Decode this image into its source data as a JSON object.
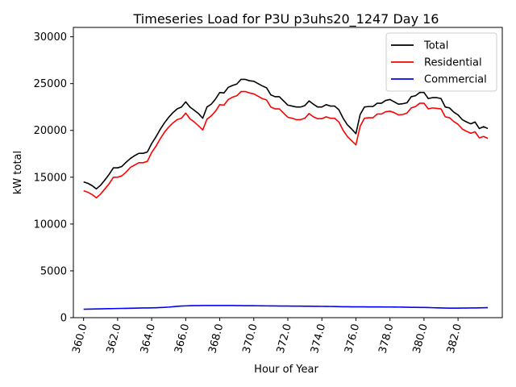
{
  "chart_data": {
    "type": "line",
    "title": "Timeseries Load for P3U p3uhs20_1247  Day 16",
    "xlabel": "Hour of Year",
    "ylabel": "kW total",
    "xlim": [
      359.4,
      384.6
    ],
    "ylim": [
      0,
      31000
    ],
    "xticks": [
      360,
      362,
      364,
      366,
      368,
      370,
      372,
      374,
      376,
      378,
      380,
      382
    ],
    "xtick_labels": [
      "360.0",
      "362.0",
      "364.0",
      "366.0",
      "368.0",
      "370.0",
      "372.0",
      "374.0",
      "376.0",
      "378.0",
      "380.0",
      "382.0"
    ],
    "yticks": [
      0,
      5000,
      10000,
      15000,
      20000,
      25000,
      30000
    ],
    "ytick_labels": [
      "0",
      "5000",
      "10000",
      "15000",
      "20000",
      "25000",
      "30000"
    ],
    "legend_position": "top-right",
    "x": [
      360.0,
      360.25,
      360.5,
      360.75,
      361.0,
      361.25,
      361.5,
      361.75,
      362.0,
      362.25,
      362.5,
      362.75,
      363.0,
      363.25,
      363.5,
      363.75,
      364.0,
      364.25,
      364.5,
      364.75,
      365.0,
      365.25,
      365.5,
      365.75,
      366.0,
      366.25,
      366.5,
      366.75,
      367.0,
      367.25,
      367.5,
      367.75,
      368.0,
      368.25,
      368.5,
      368.75,
      369.0,
      369.25,
      369.5,
      369.75,
      370.0,
      370.25,
      370.5,
      370.75,
      371.0,
      371.25,
      371.5,
      371.75,
      372.0,
      372.25,
      372.5,
      372.75,
      373.0,
      373.25,
      373.5,
      373.75,
      374.0,
      374.25,
      374.5,
      374.75,
      375.0,
      375.25,
      375.5,
      375.75,
      376.0,
      376.25,
      376.5,
      376.75,
      377.0,
      377.25,
      377.5,
      377.75,
      378.0,
      378.25,
      378.5,
      378.75,
      379.0,
      379.25,
      379.5,
      379.75,
      380.0,
      380.25,
      380.5,
      380.75,
      381.0,
      381.25,
      381.5,
      381.75,
      382.0,
      382.25,
      382.5,
      382.75,
      383.0,
      383.25,
      383.5,
      383.75
    ],
    "series": [
      {
        "name": "Total",
        "color": "#000000",
        "values": [
          14500,
          14350,
          14100,
          13750,
          14150,
          14700,
          15300,
          16000,
          16000,
          16150,
          16600,
          17000,
          17300,
          17550,
          17550,
          17700,
          18600,
          19300,
          20100,
          20800,
          21400,
          21900,
          22300,
          22500,
          23050,
          22500,
          22150,
          21800,
          21300,
          22500,
          22800,
          23350,
          24050,
          24000,
          24600,
          24800,
          24950,
          25450,
          25450,
          25300,
          25250,
          25000,
          24750,
          24550,
          23800,
          23600,
          23600,
          23150,
          22700,
          22600,
          22500,
          22500,
          22650,
          23150,
          22800,
          22500,
          22500,
          22750,
          22600,
          22600,
          22200,
          21300,
          20600,
          20150,
          19650,
          21700,
          22500,
          22550,
          22550,
          22900,
          22900,
          23200,
          23300,
          23050,
          22800,
          22850,
          22950,
          23600,
          23700,
          24050,
          24050,
          23400,
          23500,
          23500,
          23400,
          22500,
          22400,
          21950,
          21650,
          21150,
          20900,
          20700,
          20900,
          20200,
          20400,
          20200
        ]
      },
      {
        "name": "Residential",
        "color": "#ff0000",
        "values": [
          13550,
          13400,
          13150,
          12800,
          13200,
          13750,
          14300,
          15000,
          15000,
          15150,
          15550,
          16050,
          16300,
          16550,
          16550,
          16700,
          17650,
          18300,
          19100,
          19800,
          20350,
          20800,
          21150,
          21300,
          21850,
          21250,
          20900,
          20500,
          20050,
          21200,
          21550,
          22050,
          22750,
          22700,
          23300,
          23550,
          23700,
          24150,
          24150,
          24000,
          23900,
          23650,
          23400,
          23250,
          22500,
          22300,
          22300,
          21850,
          21400,
          21300,
          21150,
          21150,
          21300,
          21800,
          21450,
          21250,
          21250,
          21450,
          21300,
          21300,
          20900,
          20000,
          19350,
          18900,
          18450,
          20450,
          21300,
          21350,
          21350,
          21750,
          21750,
          22000,
          22050,
          21900,
          21650,
          21700,
          21850,
          22400,
          22550,
          22900,
          22900,
          22300,
          22400,
          22350,
          22300,
          21450,
          21350,
          20950,
          20650,
          20150,
          19900,
          19700,
          19850,
          19200,
          19350,
          19150
        ]
      },
      {
        "name": "Commercial",
        "color": "#0000ff",
        "values": [
          900,
          910,
          920,
          930,
          940,
          950,
          960,
          970,
          980,
          990,
          1000,
          1010,
          1020,
          1030,
          1040,
          1040,
          1050,
          1060,
          1080,
          1100,
          1130,
          1170,
          1210,
          1240,
          1260,
          1275,
          1285,
          1290,
          1295,
          1300,
          1300,
          1300,
          1300,
          1300,
          1300,
          1295,
          1290,
          1285,
          1280,
          1280,
          1275,
          1270,
          1265,
          1260,
          1255,
          1250,
          1245,
          1240,
          1240,
          1235,
          1230,
          1230,
          1225,
          1220,
          1215,
          1210,
          1205,
          1200,
          1195,
          1190,
          1180,
          1170,
          1165,
          1160,
          1160,
          1155,
          1155,
          1150,
          1150,
          1145,
          1145,
          1140,
          1140,
          1135,
          1130,
          1125,
          1115,
          1105,
          1100,
          1095,
          1090,
          1080,
          1065,
          1050,
          1035,
          1025,
          1020,
          1020,
          1020,
          1025,
          1030,
          1035,
          1040,
          1050,
          1060,
          1070
        ]
      }
    ]
  }
}
